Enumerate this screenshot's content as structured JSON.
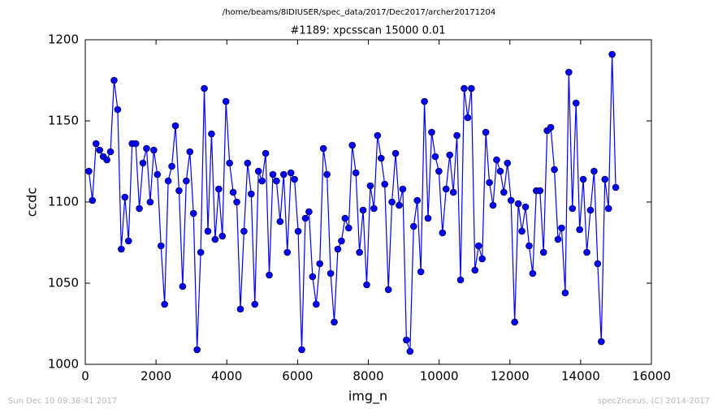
{
  "chart_data": {
    "type": "line",
    "suptitle": "/home/beams/8IDIUSER/spec_data/2017/Dec2017/archer20171204",
    "title": "#1189: xpcsscan 15000 0.01",
    "xlabel": "img_n",
    "ylabel": "ccdc",
    "x": [
      100,
      202,
      304,
      406,
      508,
      610,
      712,
      814,
      916,
      1018,
      1120,
      1222,
      1324,
      1426,
      1528,
      1630,
      1732,
      1834,
      1936,
      2038,
      2140,
      2242,
      2344,
      2446,
      2548,
      2650,
      2752,
      2854,
      2956,
      3058,
      3160,
      3262,
      3364,
      3466,
      3568,
      3670,
      3772,
      3874,
      3976,
      4078,
      4180,
      4282,
      4384,
      4486,
      4588,
      4690,
      4792,
      4894,
      4996,
      5098,
      5200,
      5302,
      5404,
      5506,
      5608,
      5710,
      5812,
      5914,
      6016,
      6118,
      6220,
      6322,
      6424,
      6526,
      6628,
      6730,
      6832,
      6934,
      7036,
      7138,
      7240,
      7342,
      7444,
      7546,
      7648,
      7750,
      7852,
      7954,
      8056,
      8158,
      8260,
      8362,
      8464,
      8566,
      8668,
      8770,
      8872,
      8974,
      9076,
      9178,
      9280,
      9382,
      9484,
      9586,
      9688,
      9790,
      9892,
      9994,
      10096,
      10198,
      10300,
      10402,
      10504,
      10606,
      10708,
      10810,
      10912,
      11014,
      11116,
      11218,
      11320,
      11422,
      11524,
      11626,
      11728,
      11830,
      11932,
      12034,
      12136,
      12238,
      12340,
      12442,
      12544,
      12646,
      12748,
      12850,
      12952,
      13054,
      13156,
      13258,
      13360,
      13462,
      13564,
      13666,
      13768,
      13870,
      13972,
      14074,
      14176,
      14278,
      14380,
      14482,
      14584,
      14686,
      14788,
      14890,
      14992
    ],
    "series": [
      {
        "color": "#0000ff",
        "marker_color": "#0000ff",
        "values": [
          1119,
          1101,
          1136,
          1132,
          1128,
          1126,
          1131,
          1175,
          1157,
          1071,
          1103,
          1076,
          1136,
          1136,
          1096,
          1124,
          1133,
          1100,
          1132,
          1117,
          1073,
          1037,
          1113,
          1122,
          1147,
          1107,
          1048,
          1113,
          1131,
          1093,
          1009,
          1069,
          1170,
          1082,
          1142,
          1077,
          1108,
          1079,
          1162,
          1124,
          1106,
          1100,
          1034,
          1082,
          1124,
          1105,
          1037,
          1119,
          1113,
          1130,
          1055,
          1117,
          1113,
          1088,
          1117,
          1069,
          1118,
          1114,
          1082,
          1009,
          1090,
          1094,
          1054,
          1037,
          1062,
          1133,
          1117,
          1056,
          1026,
          1071,
          1076,
          1090,
          1084,
          1135,
          1118,
          1069,
          1095,
          1049,
          1110,
          1096,
          1141,
          1127,
          1111,
          1046,
          1100,
          1130,
          1098,
          1108,
          1015,
          1008,
          1085,
          1101,
          1057,
          1162,
          1090,
          1143,
          1128,
          1119,
          1081,
          1108,
          1129,
          1106,
          1141,
          1052,
          1170,
          1152,
          1170,
          1058,
          1073,
          1065,
          1143,
          1112,
          1098,
          1126,
          1119,
          1106,
          1124,
          1101,
          1026,
          1099,
          1082,
          1097,
          1073,
          1056,
          1107,
          1107,
          1069,
          1144,
          1146,
          1120,
          1077,
          1084,
          1044,
          1180,
          1096,
          1161,
          1083,
          1114,
          1069,
          1095,
          1119,
          1062,
          1014,
          1114,
          1096,
          1191,
          1109
        ]
      }
    ],
    "xlim": [
      0,
      16000
    ],
    "xticks": [
      0,
      2000,
      4000,
      6000,
      8000,
      10000,
      12000,
      14000,
      16000
    ],
    "ylim": [
      1000,
      1200
    ],
    "yticks": [
      1000,
      1050,
      1100,
      1150,
      1200
    ]
  },
  "footer": {
    "left": "Sun Dec 10 09:38:41 2017",
    "right": "spec2nexus, (C) 2014-2017"
  }
}
